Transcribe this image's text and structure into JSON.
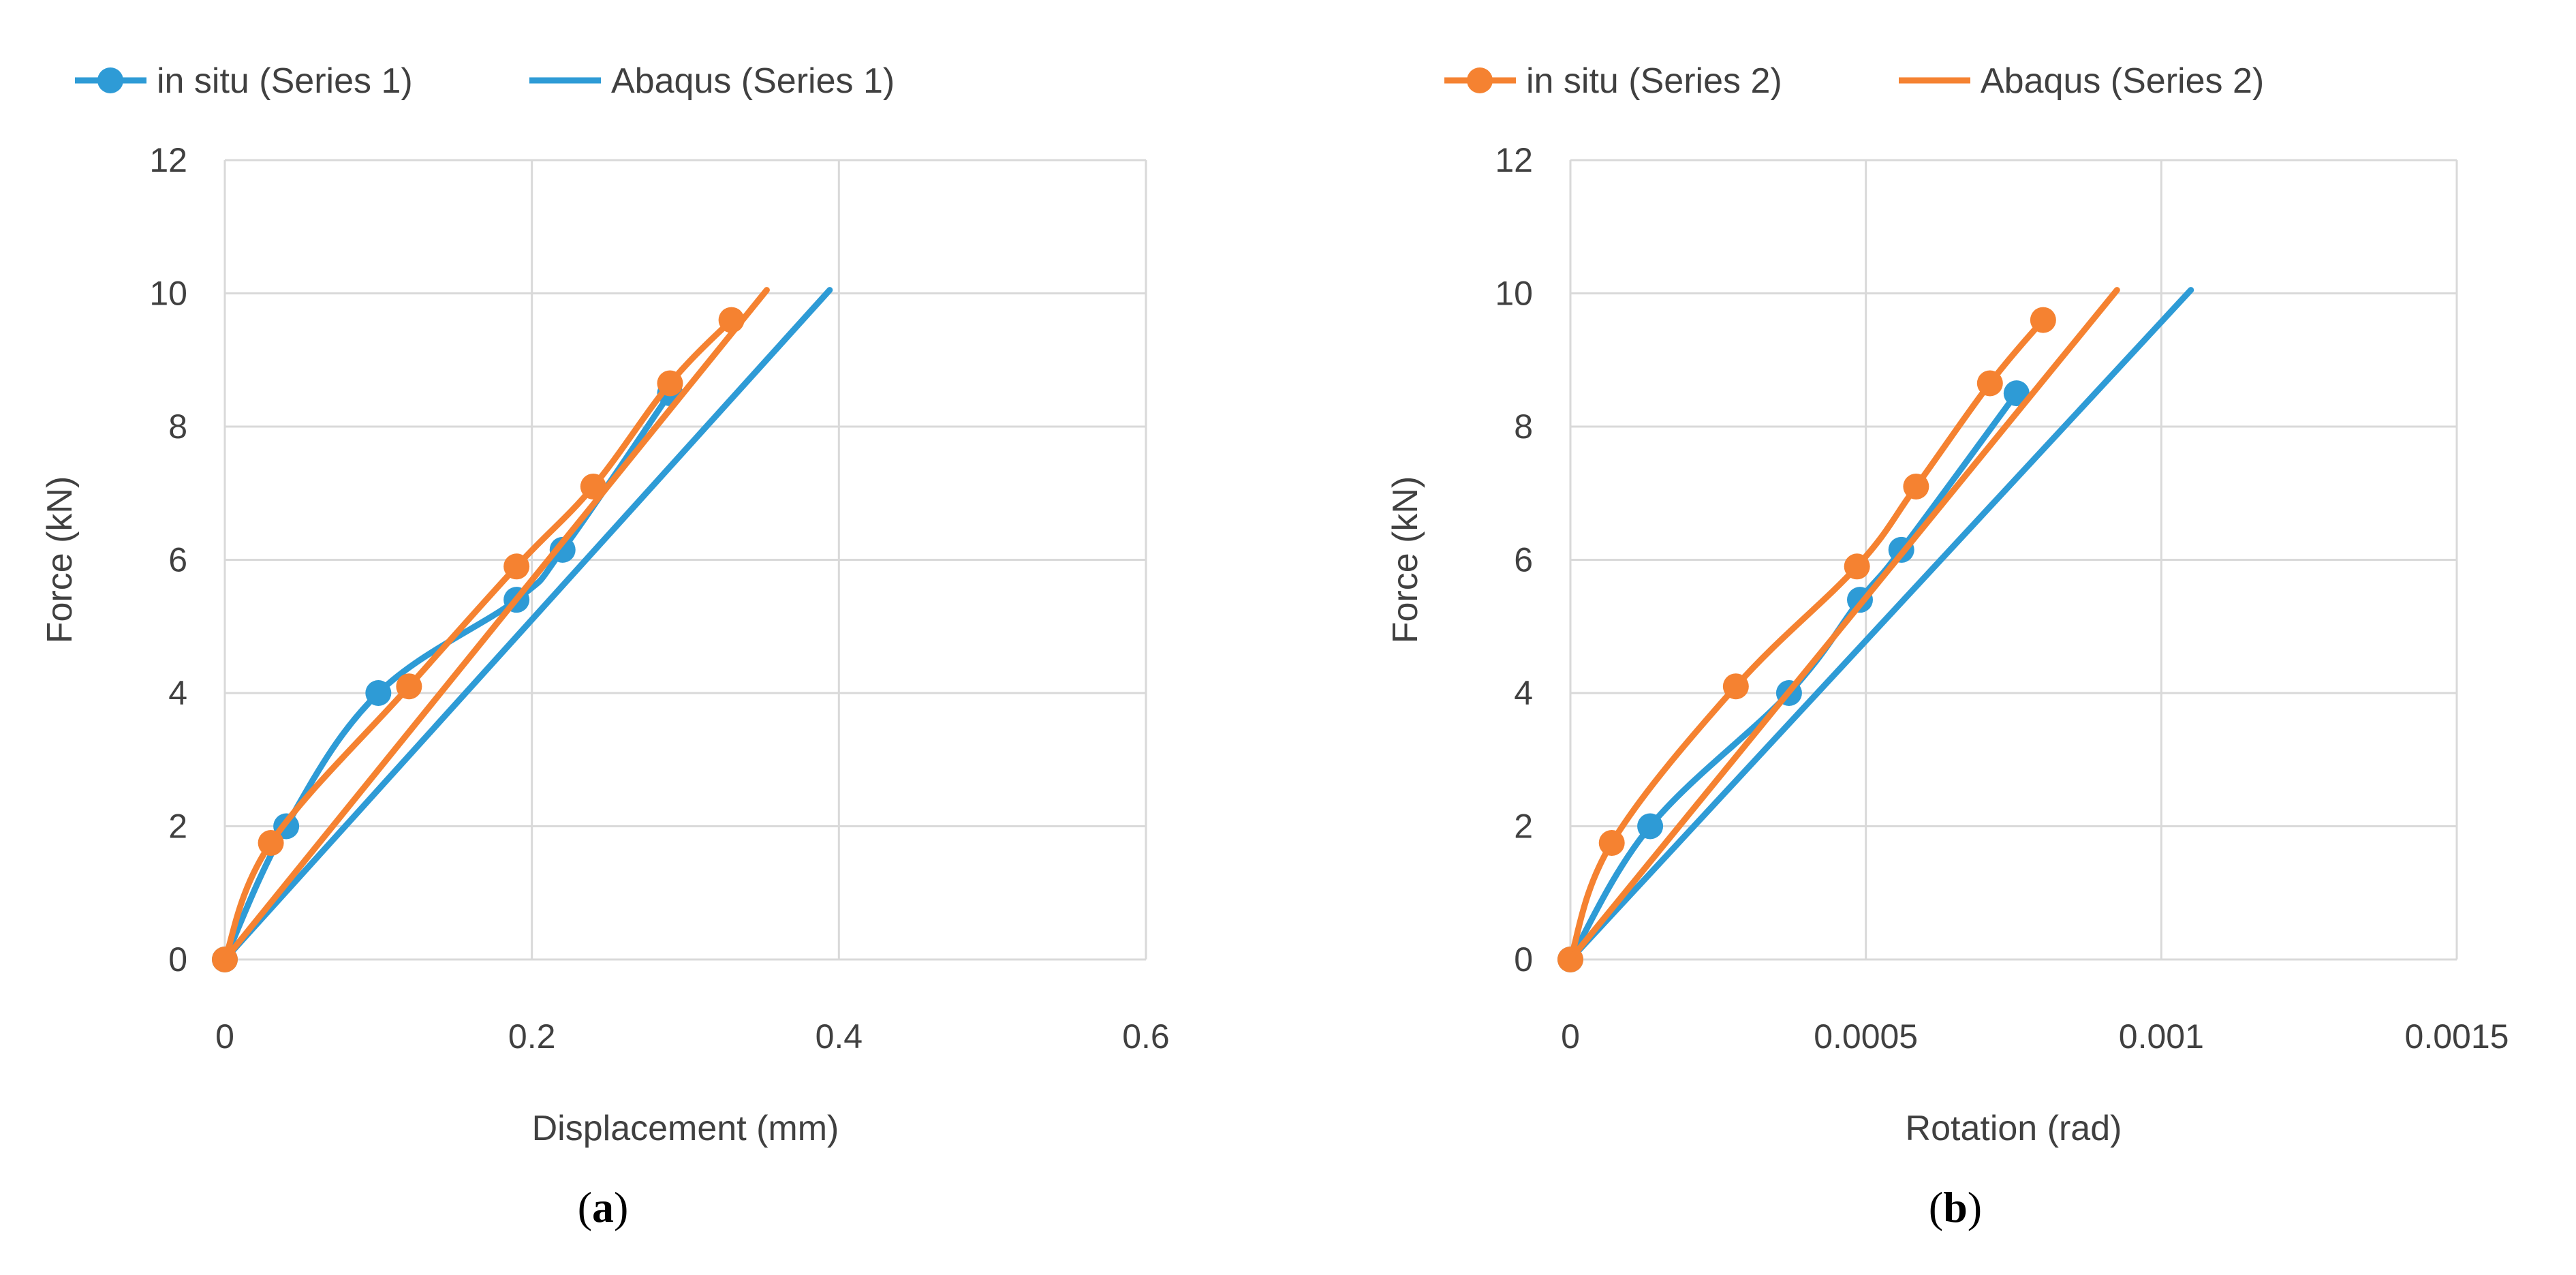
{
  "chart_data": [
    {
      "type": "line",
      "panel_label": {
        "open": "(",
        "letter": "a",
        "close": ")"
      },
      "xlabel": "Displacement (mm)",
      "ylabel": "Force (kN)",
      "xlim": [
        0,
        0.6
      ],
      "ylim": [
        0,
        12
      ],
      "xticks": [
        0,
        0.2,
        0.4,
        0.6
      ],
      "xtick_labels": [
        "0",
        "0.2",
        "0.4",
        "0.6"
      ],
      "yticks": [
        0,
        2,
        4,
        6,
        8,
        10,
        12
      ],
      "ytick_labels": [
        "0",
        "2",
        "4",
        "6",
        "8",
        "10",
        "12"
      ],
      "grid": true,
      "legend_position": "top",
      "series": [
        {
          "name": "in situ (Series 1)",
          "color": "#2E9BD6",
          "markers": true,
          "smooth": true,
          "x": [
            0,
            0.04,
            0.1,
            0.19,
            0.22,
            0.29
          ],
          "y": [
            0,
            2.0,
            4.0,
            5.4,
            6.15,
            8.5
          ]
        },
        {
          "name": "Abaqus (Series 1)",
          "color": "#2E9BD6",
          "markers": false,
          "smooth": false,
          "x": [
            0,
            0.394
          ],
          "y": [
            0,
            10.05
          ]
        },
        {
          "name": "in situ (Series 2)",
          "color": "#F58231",
          "markers": true,
          "smooth": true,
          "x": [
            0,
            0.03,
            0.12,
            0.19,
            0.24,
            0.29,
            0.33
          ],
          "y": [
            0,
            1.75,
            4.1,
            5.9,
            7.1,
            8.65,
            9.6
          ]
        },
        {
          "name": "Abaqus (Series 2)",
          "color": "#F58231",
          "markers": false,
          "smooth": false,
          "x": [
            0,
            0.353
          ],
          "y": [
            0,
            10.05
          ]
        }
      ]
    },
    {
      "type": "line",
      "panel_label": {
        "open": "(",
        "letter": "b",
        "close": ")"
      },
      "xlabel": "Rotation (rad)",
      "ylabel": "Force (kN)",
      "xlim": [
        0,
        0.0015
      ],
      "ylim": [
        0,
        12
      ],
      "xticks": [
        0,
        0.0005,
        0.001,
        0.0015
      ],
      "xtick_labels": [
        "0",
        "0.0005",
        "0.001",
        "0.0015"
      ],
      "yticks": [
        0,
        2,
        4,
        6,
        8,
        10,
        12
      ],
      "ytick_labels": [
        "0",
        "2",
        "4",
        "6",
        "8",
        "10",
        "12"
      ],
      "grid": true,
      "legend_position": "top",
      "series": [
        {
          "name": "in situ (Series 1)",
          "color": "#2E9BD6",
          "markers": true,
          "smooth": true,
          "x": [
            0,
            0.000135,
            0.00037,
            0.00049,
            0.00056,
            0.000755
          ],
          "y": [
            0,
            2.0,
            4.0,
            5.4,
            6.15,
            8.5
          ]
        },
        {
          "name": "Abaqus (Series 1)",
          "color": "#2E9BD6",
          "markers": false,
          "smooth": false,
          "x": [
            0,
            0.00105
          ],
          "y": [
            0,
            10.05
          ]
        },
        {
          "name": "in situ (Series 2)",
          "color": "#F58231",
          "markers": true,
          "smooth": true,
          "x": [
            0,
            7e-05,
            0.00028,
            0.000485,
            0.000585,
            0.00071,
            0.0008
          ],
          "y": [
            0,
            1.75,
            4.1,
            5.9,
            7.1,
            8.65,
            9.6
          ]
        },
        {
          "name": "Abaqus (Series 2)",
          "color": "#F58231",
          "markers": false,
          "smooth": false,
          "x": [
            0,
            0.000925
          ],
          "y": [
            0,
            10.05
          ]
        }
      ]
    }
  ],
  "legends": [
    {
      "items": [
        {
          "label": "in situ (Series 1)",
          "color": "#2E9BD6",
          "marker": true
        },
        {
          "label": "Abaqus (Series 1)",
          "color": "#2E9BD6",
          "marker": false
        }
      ]
    },
    {
      "items": [
        {
          "label": "in situ (Series 2)",
          "color": "#F58231",
          "marker": true
        },
        {
          "label": "Abaqus (Series 2)",
          "color": "#F58231",
          "marker": false
        }
      ]
    }
  ]
}
